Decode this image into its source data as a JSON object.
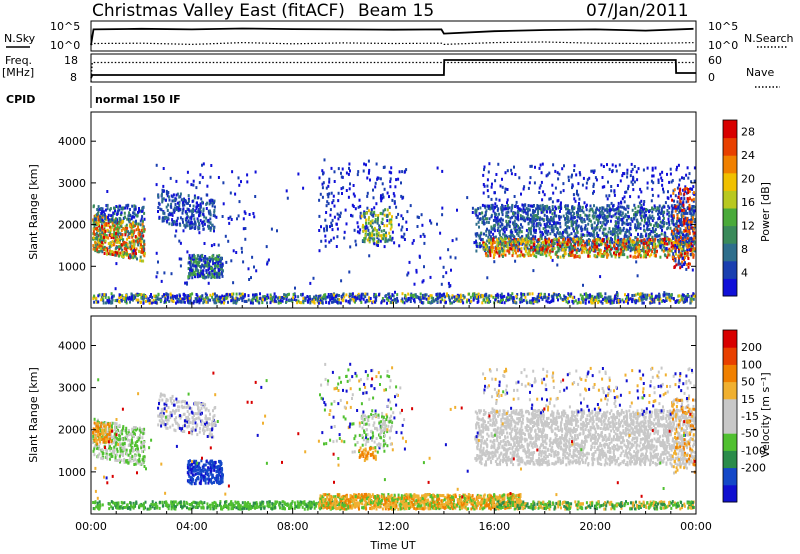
{
  "header": {
    "radar": "Christmas Valley East (fitACF)",
    "beam": "Beam 15",
    "date": "07/Jan/2011"
  },
  "colors": {
    "power_scale": [
      "#1010d8",
      "#1a3fb0",
      "#2e6e8c",
      "#3a8a5a",
      "#4aaa3a",
      "#b8c820",
      "#f0c000",
      "#f08000",
      "#e84000",
      "#d80000"
    ],
    "velocity_scale": [
      "#1010d0",
      "#1448c8",
      "#2a8c4a",
      "#50c030",
      "#c8c8c8",
      "#c8c8c8",
      "#f0b030",
      "#f08000",
      "#e84000",
      "#d80000"
    ]
  },
  "chart_data": [
    {
      "type": "line",
      "name_panel": "sky_noise",
      "labels": {
        "left": "N.Sky",
        "right": "N.Search",
        "left_ticks": [
          "10^5",
          "10^0"
        ],
        "right_ticks": [
          "10^5",
          "10^0"
        ]
      },
      "x_hours": [
        0,
        0.1,
        2,
        4,
        6,
        8,
        10,
        12,
        13.9,
        14,
        16,
        18,
        20,
        22,
        23.9
      ],
      "series": [
        {
          "role": "solid",
          "values": [
            0.2,
            0.72,
            0.74,
            0.72,
            0.75,
            0.73,
            0.72,
            0.71,
            0.72,
            0.58,
            0.66,
            0.7,
            0.72,
            0.68,
            0.74
          ]
        },
        {
          "role": "dotted",
          "values": [
            0.2,
            0.25,
            0.26,
            0.22,
            0.28,
            0.24,
            0.27,
            0.25,
            0.26,
            0.22,
            0.28,
            0.3,
            0.26,
            0.25,
            0.28
          ]
        }
      ]
    },
    {
      "type": "line",
      "name_panel": "frequency_nave",
      "labels": {
        "left": "Freq.",
        "left2": "[MHz]",
        "right": "Nave",
        "left_ticks": [
          "18",
          "8"
        ],
        "right_ticks": [
          "60",
          "0"
        ]
      },
      "x_hours": [
        0,
        0.05,
        14,
        14.01,
        23.2,
        23.21,
        24
      ],
      "series": [
        {
          "name": "Freq. [MHz]",
          "role": "solid",
          "values": [
            8,
            9.5,
            9.5,
            17,
            17,
            10.5,
            10.5
          ]
        },
        {
          "name": "Nave",
          "role": "dotted",
          "values": [
            0,
            45,
            45,
            45,
            45,
            45,
            45
          ]
        }
      ]
    },
    {
      "type": "heatmap",
      "name_panel": "power",
      "xlabel": "",
      "ylabel": "Slant Range [km]",
      "ylim": [
        0,
        4700
      ],
      "xlim": [
        0,
        24
      ],
      "y_ticks": [
        "1000",
        "2000",
        "3000",
        "4000"
      ],
      "colorbar": {
        "label": "Power [dB]",
        "ticks": [
          "4",
          "8",
          "12",
          "16",
          "20",
          "24",
          "28"
        ],
        "range": [
          0,
          30
        ]
      }
    },
    {
      "type": "heatmap",
      "name_panel": "velocity",
      "xlabel": "Time UT",
      "ylabel": "Slant Range [km]",
      "ylim": [
        0,
        4700
      ],
      "xlim": [
        0,
        24
      ],
      "y_ticks": [
        "1000",
        "2000",
        "3000",
        "4000"
      ],
      "x_ticks": [
        "00:00",
        "04:00",
        "08:00",
        "12:00",
        "16:00",
        "20:00",
        "00:00"
      ],
      "colorbar": {
        "label": "Velocity [m s⁻¹]",
        "ticks": [
          "200",
          "100",
          "50",
          "15",
          "-15",
          "-50",
          "-100",
          "-200"
        ]
      }
    }
  ],
  "labels": {
    "cpid": "CPID",
    "cpid_value": "normal 150 IF"
  }
}
